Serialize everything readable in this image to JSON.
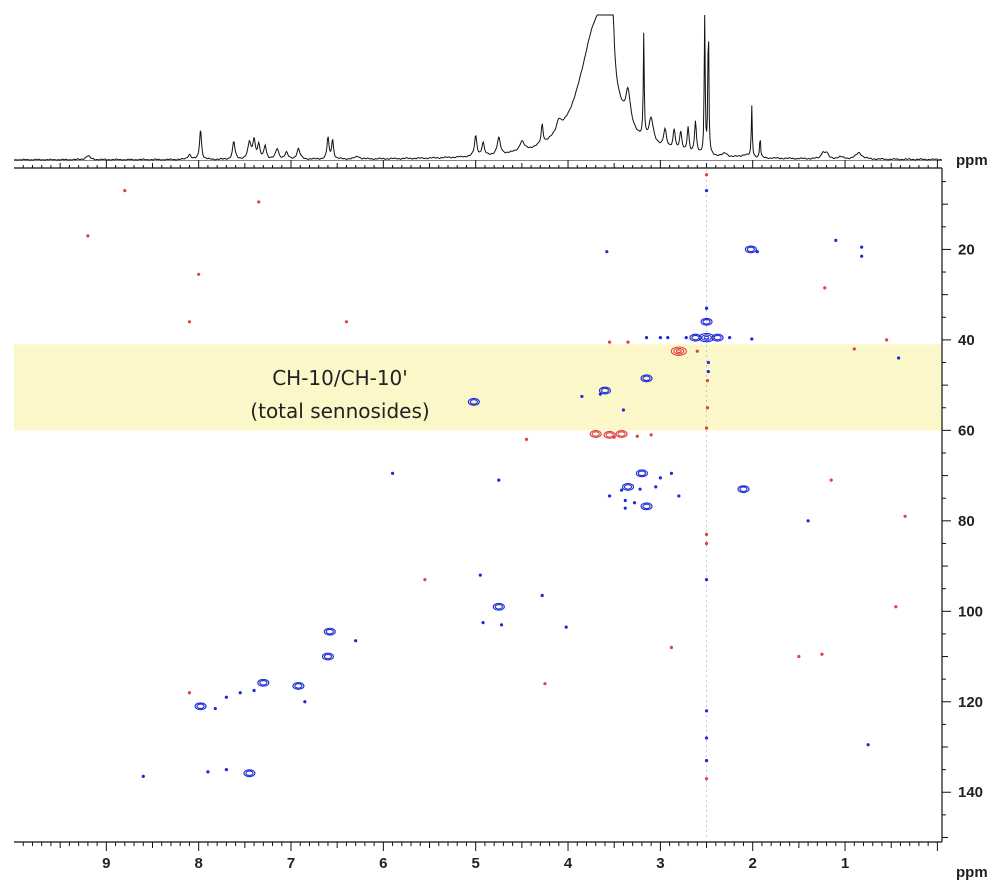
{
  "chart_data": {
    "type": "scatter",
    "title": "",
    "xlabel": "ppm",
    "ylabel": "ppm",
    "top_axis_label": "ppm",
    "xlim": [
      10.0,
      -0.05
    ],
    "ylim": [
      2.0,
      151.0
    ],
    "x_ticks": [
      9,
      8,
      7,
      6,
      5,
      4,
      3,
      2,
      1
    ],
    "y_ticks": [
      20,
      40,
      60,
      80,
      100,
      120,
      140
    ],
    "grid": false,
    "colors": {
      "positive": "#1c2bd8",
      "negative": "#e0413a",
      "highlight": "#fbf7c9",
      "axis": "#111111",
      "spectrum": "#111111"
    },
    "highlight_band": {
      "y_range": [
        41,
        60
      ],
      "label_line1": "CH-10/CH-10'",
      "label_line2": "(total sennosides)"
    },
    "solvent_line_x": 2.5,
    "series": [
      {
        "phase": "positive",
        "points": [
          [
            2.5,
            7,
            1
          ],
          [
            2.5,
            33,
            1
          ],
          [
            2.5,
            36,
            2
          ],
          [
            2.5,
            39.5,
            3
          ],
          [
            2.48,
            45,
            1
          ],
          [
            2.48,
            47,
            1
          ],
          [
            2.5,
            93,
            1
          ],
          [
            2.5,
            122,
            1
          ],
          [
            2.5,
            128,
            1
          ],
          [
            2.5,
            133,
            1
          ],
          [
            2.62,
            39.5,
            2
          ],
          [
            2.38,
            39.5,
            2
          ],
          [
            2.72,
            39.5,
            1
          ],
          [
            2.25,
            39.5,
            1
          ],
          [
            2.92,
            39.5,
            1
          ],
          [
            2.02,
            20,
            2
          ],
          [
            1.95,
            20.5,
            1
          ],
          [
            3.58,
            20.5,
            1
          ],
          [
            2.01,
            39.8,
            1
          ],
          [
            1.1,
            18,
            1
          ],
          [
            0.82,
            19.5,
            1
          ],
          [
            0.82,
            21.5,
            1
          ],
          [
            3.6,
            51.2,
            2
          ],
          [
            3.65,
            52,
            1
          ],
          [
            3.15,
            48.5,
            2
          ],
          [
            3.85,
            52.5,
            1
          ],
          [
            3.4,
            55.5,
            1
          ],
          [
            5.02,
            53.7,
            2
          ],
          [
            3.35,
            72.5,
            2
          ],
          [
            3.2,
            69.5,
            2
          ],
          [
            3.0,
            70.5,
            1
          ],
          [
            2.88,
            69.5,
            1
          ],
          [
            3.42,
            73.2,
            1
          ],
          [
            3.22,
            73,
            1
          ],
          [
            3.05,
            72.5,
            1
          ],
          [
            3.38,
            75.5,
            1
          ],
          [
            3.38,
            77.2,
            1
          ],
          [
            3.15,
            76.8,
            2
          ],
          [
            3.28,
            76,
            1
          ],
          [
            2.8,
            74.5,
            1
          ],
          [
            3.55,
            74.5,
            1
          ],
          [
            2.1,
            73,
            2
          ],
          [
            3.15,
            39.5,
            1
          ],
          [
            3.0,
            39.5,
            1
          ],
          [
            4.95,
            92,
            1
          ],
          [
            4.28,
            96.5,
            1
          ],
          [
            4.75,
            99,
            2
          ],
          [
            4.92,
            102.5,
            1
          ],
          [
            4.72,
            103,
            1
          ],
          [
            4.02,
            103.5,
            1
          ],
          [
            6.58,
            104.5,
            2
          ],
          [
            6.3,
            106.5,
            1
          ],
          [
            6.6,
            110,
            2
          ],
          [
            6.92,
            116.5,
            2
          ],
          [
            7.3,
            115.8,
            2
          ],
          [
            7.4,
            117.5,
            1
          ],
          [
            7.55,
            118,
            1
          ],
          [
            7.7,
            119,
            1
          ],
          [
            7.98,
            121,
            2
          ],
          [
            7.82,
            121.5,
            1
          ],
          [
            6.85,
            120,
            1
          ],
          [
            7.45,
            135.8,
            2
          ],
          [
            7.7,
            135,
            1
          ],
          [
            7.9,
            135.5,
            1
          ],
          [
            8.6,
            136.5,
            1
          ],
          [
            0.75,
            129.5,
            1
          ],
          [
            1.4,
            80,
            1
          ],
          [
            0.42,
            44,
            1
          ],
          [
            5.9,
            69.5,
            1
          ],
          [
            4.75,
            71,
            1
          ]
        ]
      },
      {
        "phase": "negative",
        "points": [
          [
            8.8,
            7,
            1
          ],
          [
            7.35,
            9.5,
            1
          ],
          [
            9.2,
            17,
            1
          ],
          [
            8.0,
            25.5,
            1
          ],
          [
            8.1,
            36,
            1
          ],
          [
            6.4,
            36,
            1
          ],
          [
            1.22,
            28.5,
            1
          ],
          [
            0.55,
            40,
            1
          ],
          [
            0.9,
            42,
            1
          ],
          [
            2.5,
            3.5,
            1
          ],
          [
            2.5,
            33,
            1
          ],
          [
            3.55,
            40.5,
            1
          ],
          [
            3.35,
            40.5,
            1
          ],
          [
            2.8,
            42.5,
            3
          ],
          [
            2.6,
            42.5,
            1
          ],
          [
            2.49,
            49,
            1
          ],
          [
            2.49,
            55,
            1
          ],
          [
            2.5,
            59.5,
            1
          ],
          [
            3.7,
            60.8,
            2
          ],
          [
            3.55,
            61,
            2
          ],
          [
            3.42,
            60.8,
            2
          ],
          [
            3.5,
            61.5,
            1
          ],
          [
            3.1,
            61,
            1
          ],
          [
            3.25,
            61.3,
            1
          ],
          [
            4.45,
            62,
            1
          ],
          [
            1.15,
            71,
            1
          ],
          [
            0.35,
            79,
            1
          ],
          [
            2.5,
            83,
            1
          ],
          [
            2.5,
            85,
            1
          ],
          [
            5.55,
            93,
            1
          ],
          [
            0.45,
            99,
            1
          ],
          [
            2.88,
            108,
            1
          ],
          [
            1.5,
            110,
            1
          ],
          [
            1.25,
            109.5,
            1
          ],
          [
            4.25,
            116,
            1
          ],
          [
            8.1,
            118,
            1
          ],
          [
            2.5,
            137,
            1
          ],
          [
            2.5,
            133,
            1
          ]
        ]
      }
    ],
    "projection_1h": {
      "description": "1D proton spectrum along top",
      "peaks": [
        [
          9.2,
          0.6,
          0.03
        ],
        [
          8.1,
          0.8,
          0.02
        ],
        [
          8.0,
          0.0,
          0.0
        ],
        [
          7.98,
          4.8,
          0.012
        ],
        [
          7.62,
          2.8,
          0.015
        ],
        [
          7.45,
          2.6,
          0.02
        ],
        [
          7.4,
          3.0,
          0.015
        ],
        [
          7.35,
          2.2,
          0.015
        ],
        [
          7.28,
          2.1,
          0.015
        ],
        [
          7.15,
          1.6,
          0.02
        ],
        [
          7.05,
          1.0,
          0.02
        ],
        [
          6.92,
          1.6,
          0.02
        ],
        [
          6.6,
          3.4,
          0.012
        ],
        [
          6.55,
          3.0,
          0.012
        ],
        [
          6.28,
          0.4,
          0.03
        ],
        [
          5.0,
          3.2,
          0.015
        ],
        [
          4.92,
          2.0,
          0.015
        ],
        [
          4.75,
          2.6,
          0.02
        ],
        [
          4.5,
          1.5,
          0.03
        ],
        [
          4.28,
          3.0,
          0.012
        ],
        [
          4.1,
          1.8,
          0.03
        ],
        [
          3.7,
          20.0,
          0.22
        ],
        [
          3.6,
          14.0,
          0.04
        ],
        [
          3.52,
          12.0,
          0.02
        ],
        [
          3.18,
          16.0,
          0.006
        ],
        [
          3.35,
          5.0,
          0.03
        ],
        [
          3.1,
          4.0,
          0.03
        ],
        [
          2.95,
          3.0,
          0.02
        ],
        [
          2.85,
          3.2,
          0.015
        ],
        [
          2.78,
          3.0,
          0.015
        ],
        [
          2.7,
          4.0,
          0.012
        ],
        [
          2.62,
          5.0,
          0.012
        ],
        [
          2.52,
          22.0,
          0.006
        ],
        [
          2.48,
          22.0,
          0.006
        ],
        [
          2.3,
          0.5,
          0.03
        ],
        [
          2.08,
          0.4,
          0.05
        ],
        [
          2.01,
          8.0,
          0.006
        ],
        [
          1.92,
          3.4,
          0.006
        ],
        [
          1.24,
          1.0,
          0.02
        ],
        [
          1.2,
          0.9,
          0.02
        ],
        [
          1.05,
          0.3,
          0.04
        ],
        [
          0.85,
          1.0,
          0.04
        ]
      ]
    }
  }
}
